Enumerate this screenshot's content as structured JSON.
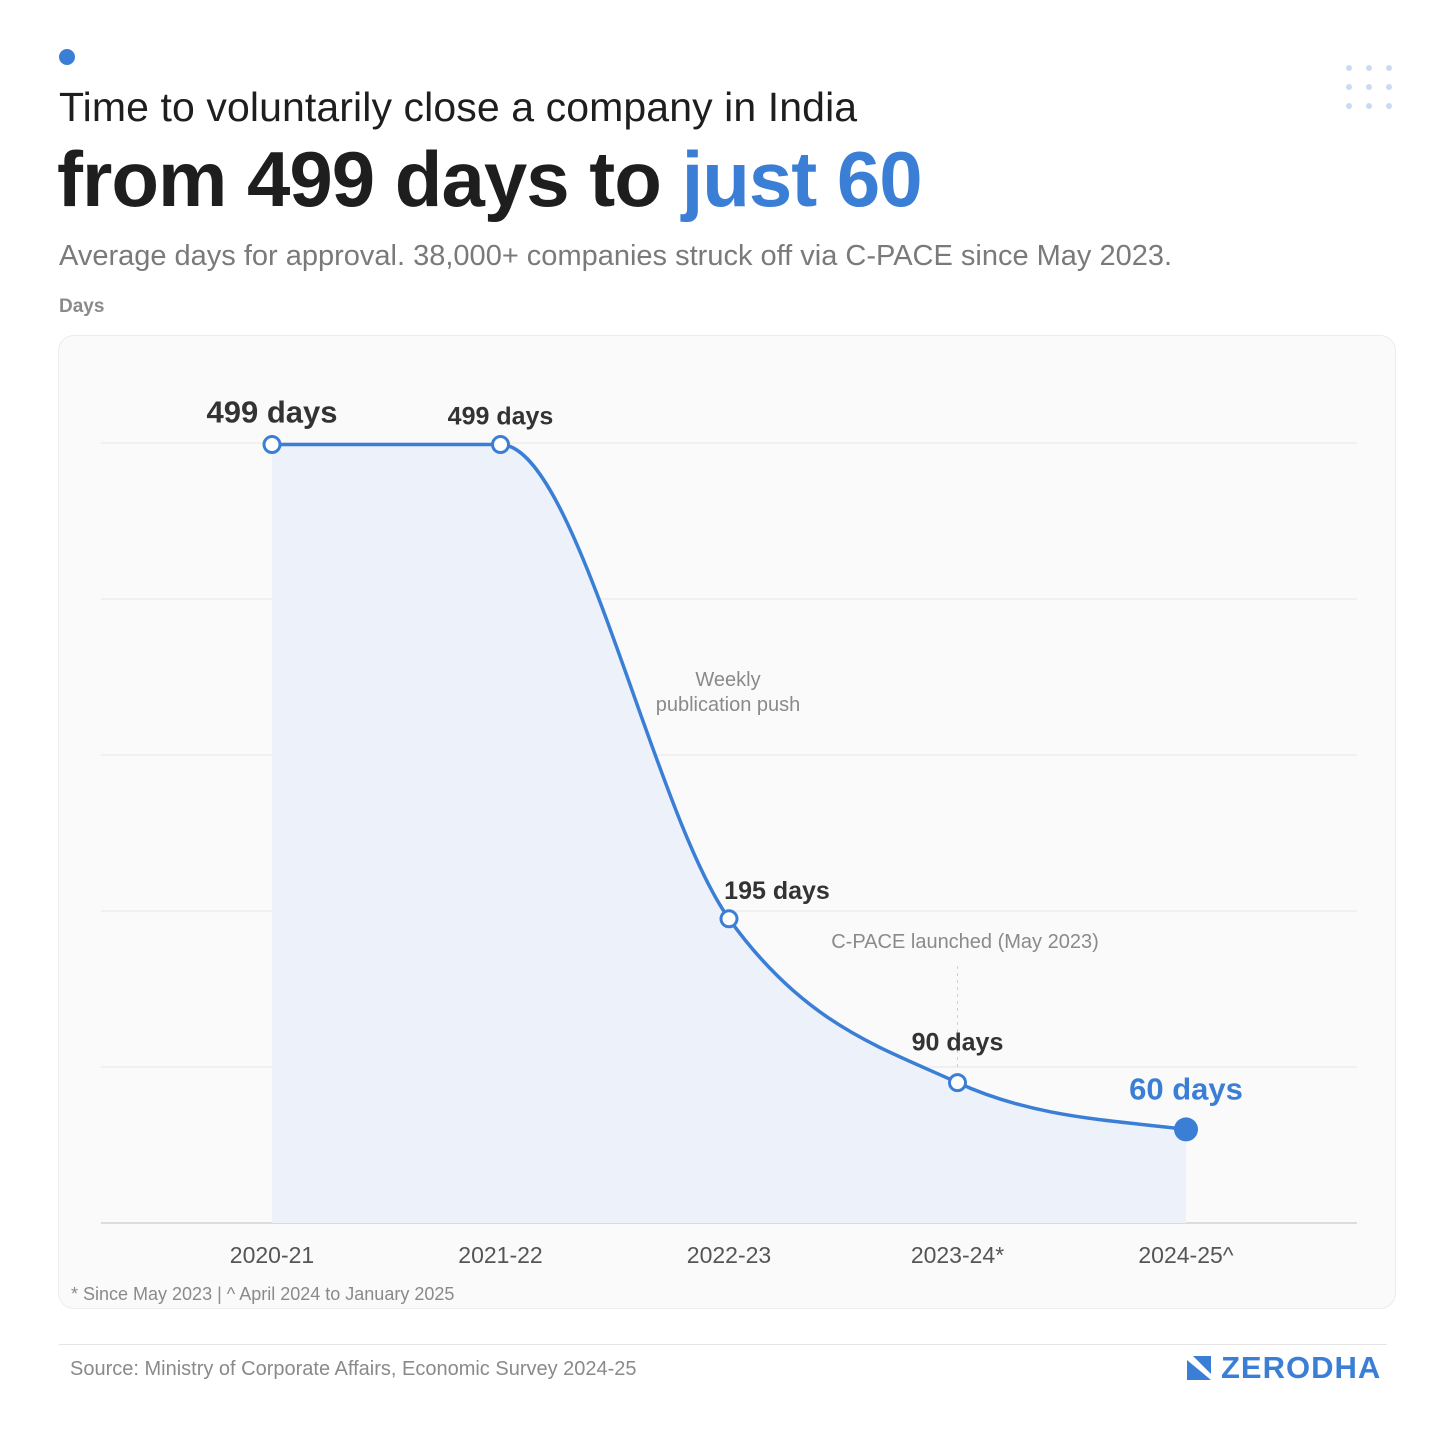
{
  "header": {
    "title_line1": "Time to voluntarily close a company in India",
    "title_line2_main": "from 499 days to ",
    "title_line2_highlight": "just 60",
    "subtitle": "Average days for approval. 38,000+ companies struck off via C-PACE since May 2023.",
    "axis_unit": "Days"
  },
  "colors": {
    "accent": "#3a7fd5",
    "text": "#1e1e1e",
    "muted": "#8a8a8a",
    "area_fill": "#edf2fa"
  },
  "chart_data": {
    "type": "area",
    "categories": [
      "2020-21",
      "2021-22",
      "2022-23",
      "2023-24*",
      "2024-25^"
    ],
    "values": [
      499,
      499,
      195,
      90,
      60
    ],
    "data_labels": [
      "499 days",
      "499 days",
      "195 days",
      "90 days",
      "60 days"
    ],
    "ylim": [
      0,
      500
    ],
    "grid": true,
    "annotations": [
      {
        "text_lines": [
          "Weekly",
          "publication push"
        ],
        "between": [
          "2021-22",
          "2022-23"
        ]
      },
      {
        "text": "C-PACE launched (May 2023)",
        "near": "2023-24*"
      }
    ]
  },
  "footnote": "* Since May 2023 | ^ April 2024 to January 2025",
  "footer": {
    "source": "Source: Ministry of Corporate Affairs, Economic Survey 2024-25",
    "brand": "ZERODHA"
  }
}
